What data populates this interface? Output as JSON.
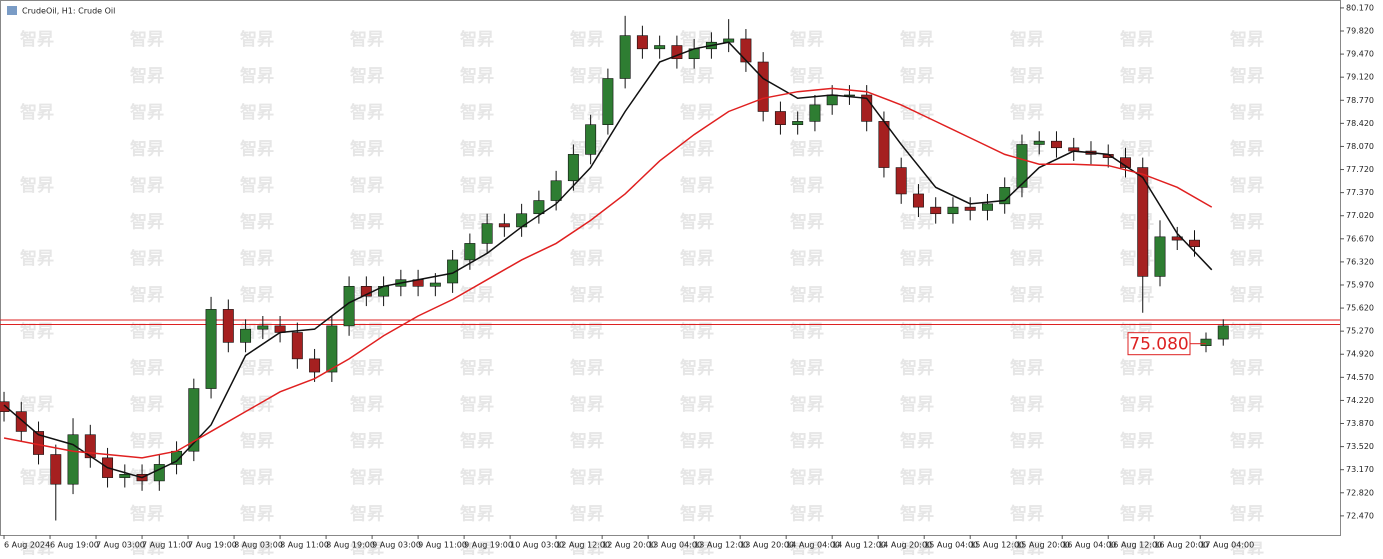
{
  "chart_data": {
    "type": "candlestick",
    "title": "CrudeOil, H1:  Crude Oil",
    "watermark": "智昇",
    "annotation": {
      "text": "75.080",
      "x": 209,
      "y": 75.08
    },
    "bull_color": "#2e7d32",
    "bear_color": "#a52020",
    "x": [
      0,
      3,
      6,
      9,
      12,
      15,
      18,
      21,
      24,
      27,
      30,
      33,
      36,
      39,
      42,
      45,
      48,
      51,
      54,
      57,
      60,
      63,
      66,
      69,
      72,
      75,
      78,
      81,
      84,
      87,
      90,
      93,
      96,
      99,
      102,
      105,
      108,
      111,
      114,
      117,
      120,
      123,
      126,
      129,
      132,
      135,
      138,
      141,
      144,
      147,
      150,
      153,
      156,
      159,
      162,
      165,
      168,
      171,
      174,
      177,
      180,
      183,
      186,
      189,
      192,
      195,
      198,
      201,
      204,
      207,
      209,
      212
    ],
    "open": [
      74.2,
      74.05,
      73.75,
      73.4,
      72.95,
      73.7,
      73.35,
      73.05,
      73.1,
      73.0,
      73.25,
      73.45,
      74.4,
      75.6,
      75.1,
      75.3,
      75.35,
      75.25,
      74.85,
      74.65,
      75.35,
      75.95,
      75.8,
      75.95,
      76.05,
      75.95,
      76.0,
      76.35,
      76.6,
      76.9,
      76.85,
      77.05,
      77.25,
      77.55,
      77.95,
      78.4,
      79.1,
      79.75,
      79.55,
      79.6,
      79.4,
      79.55,
      79.65,
      79.7,
      79.35,
      78.6,
      78.4,
      78.45,
      78.7,
      78.85,
      78.85,
      78.45,
      77.75,
      77.35,
      77.15,
      77.05,
      77.15,
      77.1,
      77.2,
      77.45,
      78.1,
      78.15,
      78.05,
      78.0,
      77.95,
      77.9,
      77.75,
      76.1,
      76.7,
      76.65,
      75.05,
      75.15
    ],
    "high": [
      74.35,
      74.2,
      73.9,
      73.55,
      73.95,
      73.85,
      73.5,
      73.25,
      73.25,
      73.4,
      73.6,
      74.55,
      75.79,
      75.75,
      75.45,
      75.5,
      75.5,
      75.4,
      75.0,
      75.5,
      76.1,
      76.1,
      76.1,
      76.2,
      76.2,
      76.15,
      76.5,
      76.75,
      77.05,
      77.05,
      77.2,
      77.4,
      77.7,
      78.1,
      78.55,
      79.25,
      80.05,
      79.9,
      79.75,
      79.75,
      79.7,
      79.8,
      80.0,
      79.85,
      79.5,
      78.75,
      78.6,
      78.85,
      79.0,
      79.0,
      79.0,
      78.6,
      77.9,
      77.5,
      77.3,
      77.3,
      77.3,
      77.35,
      77.6,
      78.25,
      78.3,
      78.3,
      78.2,
      78.15,
      78.1,
      78.05,
      77.9,
      76.95,
      76.85,
      76.8,
      75.25,
      75.45
    ],
    "low": [
      73.9,
      73.6,
      73.25,
      72.4,
      72.8,
      73.2,
      72.9,
      72.9,
      72.85,
      72.85,
      73.1,
      73.3,
      74.25,
      74.95,
      74.95,
      75.15,
      75.1,
      74.7,
      74.5,
      74.5,
      75.2,
      75.65,
      75.65,
      75.8,
      75.8,
      75.8,
      75.85,
      76.2,
      76.45,
      76.7,
      76.7,
      76.9,
      77.1,
      77.4,
      77.8,
      78.25,
      78.95,
      79.4,
      79.4,
      79.25,
      79.25,
      79.4,
      79.5,
      79.2,
      78.45,
      78.25,
      78.25,
      78.3,
      78.55,
      78.7,
      78.3,
      77.6,
      77.2,
      77.0,
      76.9,
      76.9,
      76.95,
      76.95,
      77.05,
      77.3,
      77.95,
      77.9,
      77.85,
      77.8,
      77.75,
      77.6,
      75.55,
      75.95,
      76.5,
      76.4,
      74.95,
      75.05
    ],
    "close": [
      74.05,
      73.75,
      73.4,
      72.95,
      73.7,
      73.35,
      73.05,
      73.1,
      73.0,
      73.25,
      73.45,
      74.4,
      75.6,
      75.1,
      75.3,
      75.35,
      75.25,
      74.85,
      74.65,
      75.35,
      75.95,
      75.8,
      75.95,
      76.05,
      75.95,
      76.0,
      76.35,
      76.6,
      76.9,
      76.85,
      77.05,
      77.25,
      77.55,
      77.95,
      78.4,
      79.1,
      79.75,
      79.55,
      79.6,
      79.4,
      79.55,
      79.65,
      79.7,
      79.35,
      78.6,
      78.4,
      78.45,
      78.7,
      78.85,
      78.85,
      78.45,
      77.75,
      77.35,
      77.15,
      77.05,
      77.15,
      77.1,
      77.2,
      77.45,
      78.1,
      78.15,
      78.05,
      78.0,
      77.95,
      77.9,
      77.75,
      76.1,
      76.7,
      76.65,
      76.55,
      75.15,
      75.35
    ],
    "lines": [
      {
        "color": "#111111",
        "x": [
          0,
          6,
          12,
          18,
          24,
          30,
          36,
          42,
          48,
          54,
          60,
          66,
          72,
          78,
          84,
          90,
          96,
          102,
          108,
          114,
          120,
          126,
          132,
          138,
          144,
          150,
          156,
          162,
          168,
          174,
          180,
          186,
          192,
          198,
          204,
          210
        ],
        "values": [
          74.15,
          73.7,
          73.55,
          73.2,
          73.05,
          73.3,
          73.85,
          74.9,
          75.25,
          75.3,
          75.7,
          75.95,
          76.05,
          76.15,
          76.45,
          76.85,
          77.2,
          77.75,
          78.6,
          79.35,
          79.55,
          79.65,
          79.1,
          78.8,
          78.85,
          78.8,
          78.1,
          77.45,
          77.2,
          77.25,
          77.75,
          78.0,
          77.95,
          77.6,
          76.75,
          76.2
        ]
      },
      {
        "color": "#e02020",
        "x": [
          0,
          6,
          12,
          18,
          24,
          30,
          36,
          42,
          48,
          54,
          60,
          66,
          72,
          78,
          84,
          90,
          96,
          102,
          108,
          114,
          120,
          126,
          132,
          138,
          144,
          150,
          156,
          162,
          168,
          174,
          180,
          186,
          192,
          198,
          204,
          210
        ],
        "values": [
          73.65,
          73.55,
          73.45,
          73.4,
          73.35,
          73.45,
          73.75,
          74.05,
          74.35,
          74.55,
          74.85,
          75.2,
          75.5,
          75.75,
          76.05,
          76.35,
          76.6,
          76.95,
          77.35,
          77.85,
          78.25,
          78.6,
          78.8,
          78.9,
          78.95,
          78.9,
          78.7,
          78.45,
          78.2,
          77.95,
          77.8,
          77.8,
          77.78,
          77.65,
          77.45,
          77.15
        ]
      }
    ],
    "price_lines": [
      75.44,
      75.37
    ],
    "xlim": [
      -0.7,
      232.3
    ],
    "ylim": [
      72.18,
      80.29
    ],
    "yticks": [
      {
        "value": 80.17,
        "label": "80.170"
      },
      {
        "value": 79.82,
        "label": "79.820"
      },
      {
        "value": 79.47,
        "label": "79.470"
      },
      {
        "value": 79.12,
        "label": "79.120"
      },
      {
        "value": 78.77,
        "label": "78.770"
      },
      {
        "value": 78.42,
        "label": "78.420"
      },
      {
        "value": 78.07,
        "label": "78.070"
      },
      {
        "value": 77.72,
        "label": "77.720"
      },
      {
        "value": 77.37,
        "label": "77.370"
      },
      {
        "value": 77.02,
        "label": "77.020"
      },
      {
        "value": 76.67,
        "label": "76.670"
      },
      {
        "value": 76.32,
        "label": "76.320"
      },
      {
        "value": 75.97,
        "label": "75.970"
      },
      {
        "value": 75.62,
        "label": "75.620"
      },
      {
        "value": 75.27,
        "label": "75.270"
      },
      {
        "value": 74.92,
        "label": "74.920"
      },
      {
        "value": 74.57,
        "label": "74.570"
      },
      {
        "value": 74.22,
        "label": "74.220"
      },
      {
        "value": 73.87,
        "label": "73.870"
      },
      {
        "value": 73.52,
        "label": "73.520"
      },
      {
        "value": 73.17,
        "label": "73.170"
      },
      {
        "value": 72.82,
        "label": "72.820"
      },
      {
        "value": 72.47,
        "label": "72.470"
      }
    ],
    "xticks": [
      {
        "value": 0,
        "label": "6 Aug 2024"
      },
      {
        "value": 8,
        "label": "6 Aug 19:00"
      },
      {
        "value": 16,
        "label": "7 Aug 03:00"
      },
      {
        "value": 24,
        "label": "7 Aug 11:00"
      },
      {
        "value": 32,
        "label": "7 Aug 19:00"
      },
      {
        "value": 40,
        "label": "8 Aug 03:00"
      },
      {
        "value": 48,
        "label": "8 Aug 11:00"
      },
      {
        "value": 56,
        "label": "8 Aug 19:00"
      },
      {
        "value": 64,
        "label": "9 Aug 03:00"
      },
      {
        "value": 72,
        "label": "9 Aug 11:00"
      },
      {
        "value": 80,
        "label": "9 Aug 19:00"
      },
      {
        "value": 88,
        "label": "10 Aug 03:00"
      },
      {
        "value": 96,
        "label": "12 Aug 12:00"
      },
      {
        "value": 104,
        "label": "12 Aug 20:00"
      },
      {
        "value": 112,
        "label": "13 Aug 04:00"
      },
      {
        "value": 120,
        "label": "13 Aug 12:00"
      },
      {
        "value": 128,
        "label": "13 Aug 20:00"
      },
      {
        "value": 136,
        "label": "14 Aug 04:00"
      },
      {
        "value": 144,
        "label": "14 Aug 12:00"
      },
      {
        "value": 152,
        "label": "14 Aug 20:00"
      },
      {
        "value": 160,
        "label": "15 Aug 04:00"
      },
      {
        "value": 168,
        "label": "15 Aug 12:00"
      },
      {
        "value": 176,
        "label": "15 Aug 20:00"
      },
      {
        "value": 184,
        "label": "16 Aug 04:00"
      },
      {
        "value": 192,
        "label": "16 Aug 12:00"
      },
      {
        "value": 200,
        "label": "16 Aug 20:00"
      },
      {
        "value": 208,
        "label": "17 Aug 04:00"
      }
    ]
  }
}
